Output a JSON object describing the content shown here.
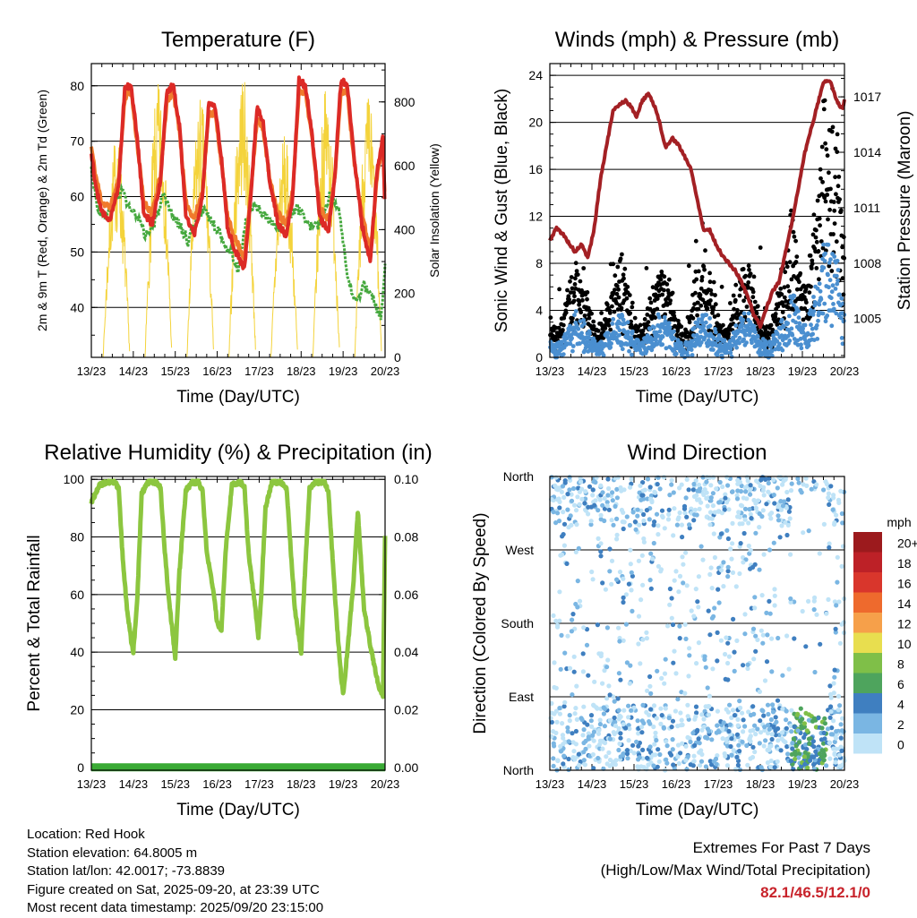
{
  "info": {
    "location": "Location: Red Hook",
    "elevation": "Station elevation: 64.8005 m",
    "latlon": "Station lat/lon: 42.0017; -73.8839",
    "created": "Figure created on Sat, 2025-09-20, at 23:39 UTC",
    "recent": "Most recent data timestamp: 2025/09/20 23:15:00"
  },
  "extremes": {
    "title": "Extremes For Past 7 Days",
    "subtitle": "(High/Low/Max Wind/Total Precipitation)",
    "values": "82.1/46.5/12.1/0",
    "color": "#c8232b"
  },
  "chart_data": [
    {
      "id": "temperature",
      "type": "line",
      "title": "Temperature (F)",
      "xlabel": "Time (Day/UTC)",
      "ylabel": "2m & 9m T (Red, Orange) & 2m Td (Green)",
      "y2label": "Solar Insolation (Yellow)",
      "x_ticks": [
        "13/23",
        "14/23",
        "15/23",
        "16/23",
        "17/23",
        "18/23",
        "19/23",
        "20/23"
      ],
      "ylim": [
        31,
        84
      ],
      "y_ticks": [
        40,
        50,
        60,
        70,
        80
      ],
      "y2lim": [
        0,
        920
      ],
      "y2_ticks": [
        0,
        200,
        400,
        600,
        800
      ],
      "series": [
        {
          "name": "2m T",
          "color": "#dc2a26",
          "x": [
            0,
            0.1,
            0.25,
            0.45,
            0.65,
            0.8,
            0.95,
            1.1,
            1.25,
            1.45,
            1.65,
            1.8,
            1.95,
            2.1,
            2.25,
            2.45,
            2.65,
            2.8,
            2.95,
            3.1,
            3.25,
            3.45,
            3.65,
            3.8,
            3.95,
            4.1,
            4.25,
            4.45,
            4.65,
            4.8,
            4.95,
            5.1,
            5.25,
            5.45,
            5.65,
            5.8,
            5.95,
            6.1,
            6.25,
            6.45,
            6.65,
            6.8,
            6.95,
            7.0
          ],
          "values": [
            68,
            62,
            57,
            56,
            62,
            80,
            80,
            70,
            57,
            55,
            63,
            79,
            80,
            73,
            57,
            53,
            60,
            77,
            76,
            67,
            54,
            50,
            47,
            60,
            76,
            73,
            63,
            55,
            53,
            60,
            81,
            80,
            72,
            56,
            54,
            63,
            81,
            80,
            68,
            55,
            48,
            64,
            71,
            57
          ]
        },
        {
          "name": "9m T",
          "color": "#f07a2c",
          "x": [
            0,
            0.1,
            0.25,
            0.45,
            0.65,
            0.8,
            0.95,
            1.1,
            1.25,
            1.45,
            1.65,
            1.8,
            1.95,
            2.1,
            2.25,
            2.45,
            2.65,
            2.8,
            2.95,
            3.1,
            3.25,
            3.45,
            3.65,
            3.8,
            3.95,
            4.1,
            4.25,
            4.45,
            4.65,
            4.8,
            4.95,
            5.1,
            5.25,
            5.45,
            5.65,
            5.8,
            5.95,
            6.1,
            6.25,
            6.45,
            6.65,
            6.8,
            6.95,
            7.0
          ],
          "values": [
            69,
            64,
            59,
            58,
            63,
            78,
            79,
            69,
            59,
            57,
            64,
            77,
            79,
            72,
            59,
            56,
            61,
            75,
            75,
            66,
            56,
            52,
            49,
            61,
            74,
            72,
            63,
            57,
            55,
            61,
            79,
            79,
            71,
            58,
            56,
            63,
            79,
            79,
            67,
            57,
            50,
            63,
            70,
            58
          ]
        },
        {
          "name": "2m Td",
          "color": "#45a83e",
          "x": [
            0,
            0.15,
            0.35,
            0.55,
            0.75,
            0.9,
            1.1,
            1.3,
            1.5,
            1.7,
            1.9,
            2.1,
            2.3,
            2.5,
            2.7,
            2.9,
            3.1,
            3.3,
            3.5,
            3.7,
            3.9,
            4.1,
            4.3,
            4.5,
            4.7,
            4.9,
            5.1,
            5.3,
            5.5,
            5.7,
            5.9,
            6.1,
            6.3,
            6.5,
            6.7,
            6.9,
            7.0
          ],
          "values": [
            65,
            58,
            56,
            60,
            61,
            58,
            56,
            53,
            55,
            60,
            57,
            55,
            52,
            56,
            58,
            55,
            53,
            50,
            47,
            56,
            58,
            57,
            55,
            54,
            56,
            58,
            56,
            54,
            56,
            61,
            58,
            45,
            41,
            44,
            42,
            38,
            48
          ]
        },
        {
          "name": "Solar Insolation",
          "color": "#f4d33b",
          "axis": "y2",
          "peaks_x": [
            0.6,
            1.6,
            2.6,
            3.6,
            4.6,
            5.6,
            6.6
          ],
          "peaks": [
            700,
            860,
            820,
            900,
            700,
            850,
            830
          ]
        }
      ]
    },
    {
      "id": "winds",
      "type": "scatter",
      "title": "Winds (mph) & Pressure (mb)",
      "xlabel": "Time (Day/UTC)",
      "ylabel": "Sonic Wind & Gust (Blue, Black)",
      "y2label": "Station Pressure (Maroon)",
      "x_ticks": [
        "13/23",
        "14/23",
        "15/23",
        "16/23",
        "17/23",
        "18/23",
        "19/23",
        "20/23"
      ],
      "ylim": [
        0,
        25
      ],
      "y_ticks": [
        0,
        4,
        8,
        12,
        16,
        20,
        24
      ],
      "y2lim": [
        1002.9,
        1018.8
      ],
      "y2_ticks": [
        1005,
        1008,
        1011,
        1014,
        1017
      ],
      "series": [
        {
          "name": "Wind",
          "color": "#4a8fd0"
        },
        {
          "name": "Gust",
          "color": "#000000"
        },
        {
          "name": "Station Pressure",
          "color": "#a32024",
          "axis": "y2",
          "x": [
            0,
            0.15,
            0.3,
            0.45,
            0.6,
            0.75,
            0.9,
            1.05,
            1.2,
            1.35,
            1.5,
            1.65,
            1.8,
            1.95,
            2.05,
            2.2,
            2.35,
            2.5,
            2.6,
            2.75,
            2.9,
            3.05,
            3.2,
            3.35,
            3.5,
            3.65,
            3.8,
            3.95,
            4.1,
            4.25,
            4.4,
            4.55,
            4.7,
            4.85,
            5.0,
            5.15,
            5.3,
            5.45,
            5.6,
            5.75,
            5.9,
            6.05,
            6.2,
            6.35,
            6.5,
            6.65,
            6.8,
            6.95,
            7.0
          ],
          "values": [
            1009.2,
            1009.9,
            1009.6,
            1009.1,
            1008.6,
            1009.0,
            1008.3,
            1009.8,
            1012.5,
            1014.4,
            1016.2,
            1016.6,
            1016.8,
            1016.4,
            1015.9,
            1016.8,
            1017.2,
            1016.4,
            1015.7,
            1014.2,
            1014.8,
            1014.4,
            1013.8,
            1013.1,
            1011.5,
            1009.8,
            1009.8,
            1009.0,
            1008.4,
            1008.0,
            1007.6,
            1007.0,
            1006.2,
            1005.2,
            1004.6,
            1005.6,
            1006.5,
            1007.0,
            1008.6,
            1010.2,
            1012.0,
            1013.9,
            1015.2,
            1016.5,
            1017.8,
            1017.9,
            1016.9,
            1016.3,
            1016.8
          ]
        }
      ]
    },
    {
      "id": "humidity",
      "type": "line",
      "title": "Relative Humidity (%) & Precipitation (in)",
      "xlabel": "Time (Day/UTC)",
      "ylabel": "Percent & Total Rainfall",
      "x_ticks": [
        "13/23",
        "14/23",
        "15/23",
        "16/23",
        "17/23",
        "18/23",
        "19/23",
        "20/23"
      ],
      "ylim": [
        -1,
        101
      ],
      "y_ticks": [
        0,
        20,
        40,
        60,
        80,
        100
      ],
      "y2lim": [
        -0.001,
        0.101
      ],
      "y2_ticks": [
        "0.00",
        "0.02",
        "0.04",
        "0.06",
        "0.08",
        "0.10"
      ],
      "series": [
        {
          "name": "Relative Humidity",
          "color": "#8cc63f",
          "x": [
            0,
            0.1,
            0.2,
            0.35,
            0.55,
            0.65,
            0.75,
            0.85,
            0.95,
            1.0,
            1.1,
            1.2,
            1.35,
            1.55,
            1.65,
            1.75,
            1.85,
            1.95,
            2.0,
            2.1,
            2.25,
            2.4,
            2.55,
            2.65,
            2.75,
            2.9,
            3.0,
            3.1,
            3.2,
            3.35,
            3.55,
            3.65,
            3.75,
            3.9,
            3.98,
            4.05,
            4.15,
            4.3,
            4.5,
            4.65,
            4.75,
            4.85,
            4.95,
            5.0,
            5.1,
            5.2,
            5.35,
            5.55,
            5.65,
            5.75,
            5.85,
            5.95,
            6.0,
            6.1,
            6.25,
            6.35,
            6.5,
            6.65,
            6.75,
            6.85,
            6.95,
            7.0
          ],
          "values": [
            92,
            95,
            98,
            99,
            99,
            97,
            72,
            55,
            44,
            40,
            60,
            95,
            99,
            99,
            97,
            75,
            58,
            45,
            38,
            68,
            96,
            99,
            99,
            96,
            75,
            62,
            50,
            48,
            75,
            98,
            99,
            97,
            74,
            56,
            45,
            60,
            90,
            99,
            99,
            97,
            76,
            55,
            45,
            40,
            70,
            97,
            99,
            99,
            96,
            72,
            50,
            32,
            25,
            40,
            65,
            89,
            55,
            42,
            35,
            28,
            25,
            80
          ]
        },
        {
          "name": "Total Precipitation",
          "color": "#3aaa35",
          "axis": "y2",
          "x": [
            0,
            7
          ],
          "values": [
            0,
            0
          ]
        }
      ]
    },
    {
      "id": "wind_direction",
      "type": "scatter",
      "title": "Wind Direction",
      "xlabel": "Time (Day/UTC)",
      "ylabel": "Direction (Colored By Speed)",
      "x_ticks": [
        "13/23",
        "14/23",
        "15/23",
        "16/23",
        "17/23",
        "18/23",
        "19/23",
        "20/23"
      ],
      "y_ticks": [
        "North",
        "East",
        "South",
        "West",
        "North"
      ],
      "ylim": [
        0,
        360
      ],
      "colorbar_title": "mph",
      "colorbar_labels": [
        "20+",
        "18",
        "16",
        "14",
        "12",
        "10",
        "8",
        "6",
        "4",
        "2",
        "0"
      ],
      "colorbar_colors": [
        "#9c1a1d",
        "#bd2127",
        "#d9362c",
        "#ee6a2d",
        "#f6a04a",
        "#e8de4f",
        "#7fbf48",
        "#4ea45d",
        "#3f7fc0",
        "#7ab6e3",
        "#bfe3f7"
      ]
    }
  ]
}
